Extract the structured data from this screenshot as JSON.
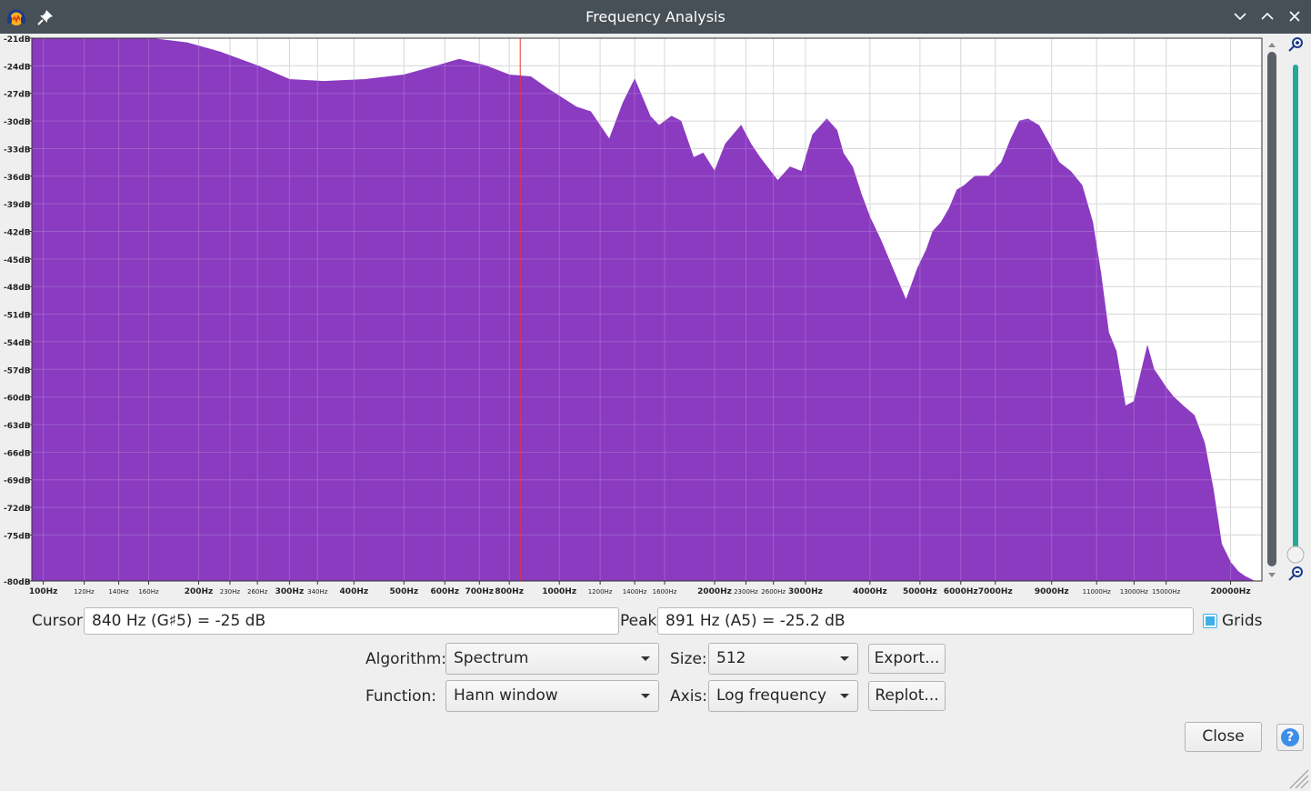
{
  "window": {
    "title": "Frequency Analysis"
  },
  "icons": {
    "app": "audacity-app-icon",
    "pin": "pin-icon",
    "minimize": "chevron-down-icon",
    "maximize": "chevron-up-icon",
    "close": "close-icon",
    "zoom_in": "zoom-in-icon",
    "zoom_out": "zoom-out-icon",
    "help": "help-icon",
    "resize": "resize-grip-icon"
  },
  "colors": {
    "spectrum_fill": "#8a3bc0",
    "cursor_line": "#e33",
    "accent": "#3daee9",
    "titlebar": "#475057"
  },
  "chart_data": {
    "type": "area",
    "x_scale": "log",
    "xlim": [
      95,
      23000
    ],
    "ylim": [
      -80,
      -21
    ],
    "grid": true,
    "y_ticks": [
      "-21dB",
      "-24dB",
      "-27dB",
      "-30dB",
      "-33dB",
      "-36dB",
      "-39dB",
      "-42dB",
      "-45dB",
      "-48dB",
      "-51dB",
      "-54dB",
      "-57dB",
      "-60dB",
      "-63dB",
      "-66dB",
      "-69dB",
      "-72dB",
      "-75dB",
      "-80dB"
    ],
    "x_ticks": [
      {
        "label": "100Hz",
        "value": 100,
        "major": true
      },
      {
        "label": "120Hz",
        "value": 120,
        "major": false
      },
      {
        "label": "140Hz",
        "value": 140,
        "major": false
      },
      {
        "label": "160Hz",
        "value": 160,
        "major": false
      },
      {
        "label": "200Hz",
        "value": 200,
        "major": true
      },
      {
        "label": "230Hz",
        "value": 230,
        "major": false
      },
      {
        "label": "260Hz",
        "value": 260,
        "major": false
      },
      {
        "label": "300Hz",
        "value": 300,
        "major": true
      },
      {
        "label": "340Hz",
        "value": 340,
        "major": false
      },
      {
        "label": "400Hz",
        "value": 400,
        "major": true
      },
      {
        "label": "500Hz",
        "value": 500,
        "major": true
      },
      {
        "label": "600Hz",
        "value": 600,
        "major": true
      },
      {
        "label": "700Hz",
        "value": 700,
        "major": true
      },
      {
        "label": "800Hz",
        "value": 800,
        "major": true
      },
      {
        "label": "1000Hz",
        "value": 1000,
        "major": true
      },
      {
        "label": "1200Hz",
        "value": 1200,
        "major": false
      },
      {
        "label": "1400Hz",
        "value": 1400,
        "major": false
      },
      {
        "label": "1600Hz",
        "value": 1600,
        "major": false
      },
      {
        "label": "2000Hz",
        "value": 2000,
        "major": true
      },
      {
        "label": "2300Hz",
        "value": 2300,
        "major": false
      },
      {
        "label": "2600Hz",
        "value": 2600,
        "major": false
      },
      {
        "label": "3000Hz",
        "value": 3000,
        "major": true
      },
      {
        "label": "4000Hz",
        "value": 4000,
        "major": true
      },
      {
        "label": "5000Hz",
        "value": 5000,
        "major": true
      },
      {
        "label": "6000Hz",
        "value": 6000,
        "major": true
      },
      {
        "label": "7000Hz",
        "value": 7000,
        "major": true
      },
      {
        "label": "9000Hz",
        "value": 9000,
        "major": true
      },
      {
        "label": "11000Hz",
        "value": 11000,
        "major": false
      },
      {
        "label": "13000Hz",
        "value": 13000,
        "major": false
      },
      {
        "label": "15000Hz",
        "value": 15000,
        "major": false
      },
      {
        "label": "20000Hz",
        "value": 20000,
        "major": true
      }
    ],
    "cursor_hz": 840,
    "series": [
      {
        "x": [
          95,
          110,
          130,
          160,
          190,
          220,
          260,
          300,
          350,
          420,
          500,
          580,
          640,
          720,
          800,
          880,
          950,
          1080,
          1150,
          1250,
          1330,
          1400,
          1500,
          1560,
          1650,
          1720,
          1820,
          1900,
          2000,
          2100,
          2250,
          2350,
          2450,
          2650,
          2800,
          2950,
          3100,
          3300,
          3450,
          3550,
          3700,
          3850,
          4000,
          4200,
          4500,
          4700,
          4950,
          5150,
          5300,
          5500,
          5700,
          5900,
          6100,
          6400,
          6800,
          7200,
          7500,
          7800,
          8100,
          8500,
          8900,
          9300,
          9800,
          10300,
          10800,
          11200,
          11600,
          12000,
          12500,
          13000,
          13400,
          13800,
          14200,
          14600,
          15000,
          15500,
          16200,
          17000,
          17800,
          18500,
          19200,
          20000,
          20700,
          21300,
          22200,
          23000
        ],
        "y": [
          -21,
          -21,
          -21,
          -21,
          -21.5,
          -22.5,
          -24,
          -25.5,
          -25.7,
          -25.5,
          -25,
          -24,
          -23.3,
          -24,
          -25,
          -25.2,
          -26.5,
          -28.5,
          -29,
          -32,
          -28,
          -25.5,
          -29.5,
          -30.5,
          -29.5,
          -30,
          -34,
          -33.5,
          -35.5,
          -32.5,
          -30.5,
          -32.5,
          -34,
          -36.5,
          -35,
          -35.5,
          -31.5,
          -29.8,
          -31,
          -33.5,
          -35,
          -38,
          -40.5,
          -43,
          -47,
          -49.5,
          -46,
          -44,
          -42,
          -41,
          -39.5,
          -37.5,
          -37,
          -36,
          -36,
          -34.5,
          -32,
          -30,
          -29.8,
          -30.5,
          -32.5,
          -34.5,
          -35.5,
          -37,
          -41,
          -46.5,
          -53,
          -55,
          -61,
          -60.5,
          -57.5,
          -54.5,
          -57,
          -58,
          -59,
          -60,
          -61,
          -62,
          -65,
          -70,
          -76,
          -78,
          -79,
          -79.5,
          -80,
          -80
        ]
      }
    ]
  },
  "cursor": {
    "label": "Cursor:",
    "value": "840 Hz (G♯5) = -25 dB"
  },
  "peak": {
    "label": "Peak:",
    "value": "891 Hz (A5) = -25.2 dB"
  },
  "grids": {
    "label": "Grids",
    "checked": true
  },
  "algorithm": {
    "label": "Algorithm:",
    "selected": "Spectrum"
  },
  "size": {
    "label": "Size:",
    "selected": "512"
  },
  "function": {
    "label": "Function:",
    "selected": "Hann window"
  },
  "axis": {
    "label": "Axis:",
    "selected": "Log frequency"
  },
  "buttons": {
    "export": "Export...",
    "replot": "Replot...",
    "close": "Close",
    "help": "?"
  }
}
